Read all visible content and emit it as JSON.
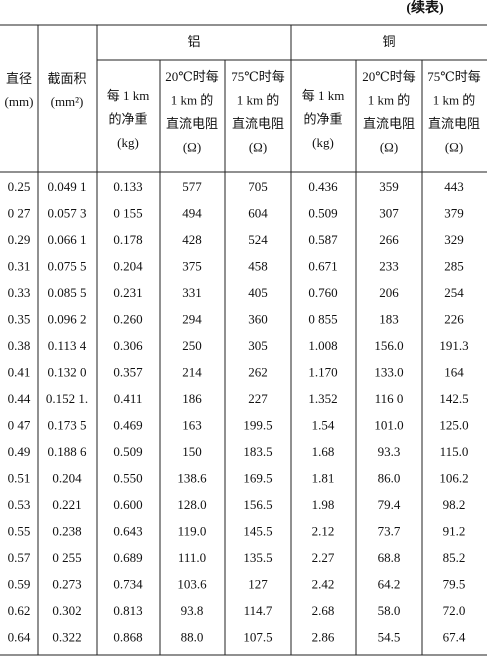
{
  "header": {
    "note": "(续表)"
  },
  "table": {
    "left_columns": [
      {
        "lines": [
          "直径",
          "(mm)"
        ]
      },
      {
        "lines": [
          "截面积",
          "(mm²)"
        ]
      }
    ],
    "groups": [
      {
        "label": "铝",
        "columns": [
          {
            "lines": [
              "每 1 km",
              "的净重",
              "(kg)"
            ]
          },
          {
            "lines": [
              "20℃时每",
              "1 km 的",
              "直流电阻",
              "(Ω)"
            ]
          },
          {
            "lines": [
              "75℃时每",
              "1 km 的",
              "直流电阻",
              "(Ω)"
            ]
          }
        ]
      },
      {
        "label": "铜",
        "columns": [
          {
            "lines": [
              "每 1 km",
              "的净重",
              "(kg)"
            ]
          },
          {
            "lines": [
              "20℃时每",
              "1 km 的",
              "直流电阻",
              "(Ω)"
            ]
          },
          {
            "lines": [
              "75℃时每",
              "1 km 的",
              "直流电阻",
              "(Ω)"
            ]
          }
        ]
      }
    ],
    "rows": [
      [
        "0.25",
        "0.049 1",
        "0.133",
        "577",
        "705",
        "0.436",
        "359",
        "443"
      ],
      [
        "0 27",
        "0.057 3",
        "0 155",
        "494",
        "604",
        "0.509",
        "307",
        "379"
      ],
      [
        "0.29",
        "0.066 1",
        "0.178",
        "428",
        "524",
        "0.587",
        "266",
        "329"
      ],
      [
        "0.31",
        "0.075 5",
        "0.204",
        "375",
        "458",
        "0.671",
        "233",
        "285"
      ],
      [
        "0.33",
        "0.085 5",
        "0.231",
        "331",
        "405",
        "0.760",
        "206",
        "254"
      ],
      [
        "0.35",
        "0.096 2",
        "0.260",
        "294",
        "360",
        "0 855",
        "183",
        "226"
      ],
      [
        "0.38",
        "0.113 4",
        "0.306",
        "250",
        "305",
        "1.008",
        "156.0",
        "191.3"
      ],
      [
        "0.41",
        "0.132 0",
        "0.357",
        "214",
        "262",
        "1.170",
        "133.0",
        "164"
      ],
      [
        "0.44",
        "0.152 1.",
        "0.411",
        "186",
        "227",
        "1.352",
        "116 0",
        "142.5"
      ],
      [
        "0 47",
        "0.173 5",
        "0.469",
        "163",
        "199.5",
        "1.54",
        "101.0",
        "125.0"
      ],
      [
        "0.49",
        "0.188 6",
        "0.509",
        "150",
        "183.5",
        "1.68",
        "93.3",
        "115.0"
      ],
      [
        "0.51",
        "0.204",
        "0.550",
        "138.6",
        "169.5",
        "1.81",
        "86.0",
        "106.2"
      ],
      [
        "0.53",
        "0.221",
        "0.600",
        "128.0",
        "156.5",
        "1.98",
        "79.4",
        "98.2"
      ],
      [
        "0.55",
        "0.238",
        "0.643",
        "119.0",
        "145.5",
        "2.12",
        "73.7",
        "91.2"
      ],
      [
        "0.57",
        "0 255",
        "0.689",
        "111.0",
        "135.5",
        "2.27",
        "68.8",
        "85.2"
      ],
      [
        "0.59",
        "0.273",
        "0.734",
        "103.6",
        "127",
        "2.42",
        "64.2",
        "79.5"
      ],
      [
        "0.62",
        "0.302",
        "0.813",
        "93.8",
        "114.7",
        "2.68",
        "58.0",
        "72.0"
      ],
      [
        "0.64",
        "0.322",
        "0.868",
        "88.0",
        "107.5",
        "2.86",
        "54.5",
        "67.4"
      ]
    ]
  }
}
